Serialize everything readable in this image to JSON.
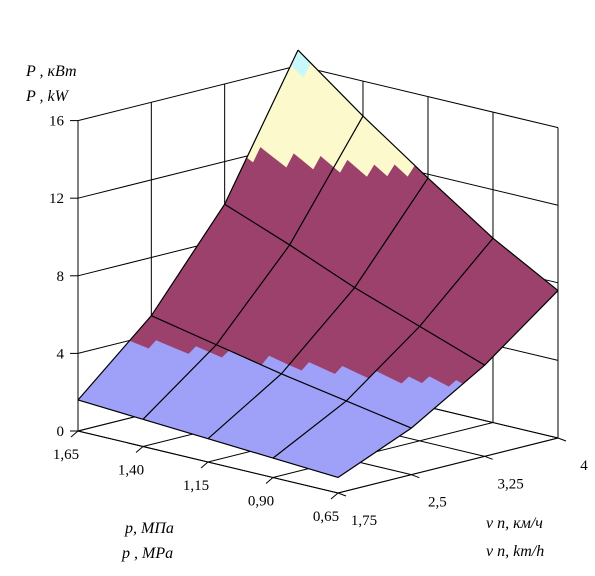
{
  "chart_data": {
    "type": "surface3d",
    "title": "",
    "z_axis": {
      "label_ru": "P , кВт",
      "label_en": "P , kW",
      "ticks": [
        "0",
        "4",
        "8",
        "12",
        "16"
      ],
      "range": [
        0,
        16
      ]
    },
    "pressure_axis": {
      "label_ru": "p,  МПа",
      "label_en": "p , MPa",
      "ticks": [
        "1,65",
        "1,40",
        "1,15",
        "0,90",
        "0,65"
      ]
    },
    "speed_axis": {
      "label_ru": "v п, км/ч",
      "label_en": "v п, km/h",
      "ticks": [
        "1,75",
        "2,5",
        "3,25",
        "4"
      ]
    },
    "pressure_values": [
      1.65,
      1.4,
      1.15,
      0.9,
      0.65
    ],
    "speed_values": [
      1.75,
      2.5,
      3.25,
      4.0
    ],
    "power_grid": [
      [
        1.6,
        5.0,
        9.8,
        16.8
      ],
      [
        1.4,
        4.3,
        8.5,
        14.2
      ],
      [
        1.2,
        3.6,
        7.1,
        11.8
      ],
      [
        1.0,
        3.0,
        5.9,
        9.5
      ],
      [
        0.8,
        2.4,
        4.7,
        7.6
      ]
    ],
    "color_bands": [
      {
        "from": 0,
        "to": 4,
        "color": "#9fa0f8"
      },
      {
        "from": 4,
        "to": 12,
        "color": "#9c406c"
      },
      {
        "from": 12,
        "to": 16,
        "color": "#fcfacc"
      },
      {
        "from": 16,
        "to": 20,
        "color": "#c8f8fc"
      }
    ],
    "grid": true
  }
}
